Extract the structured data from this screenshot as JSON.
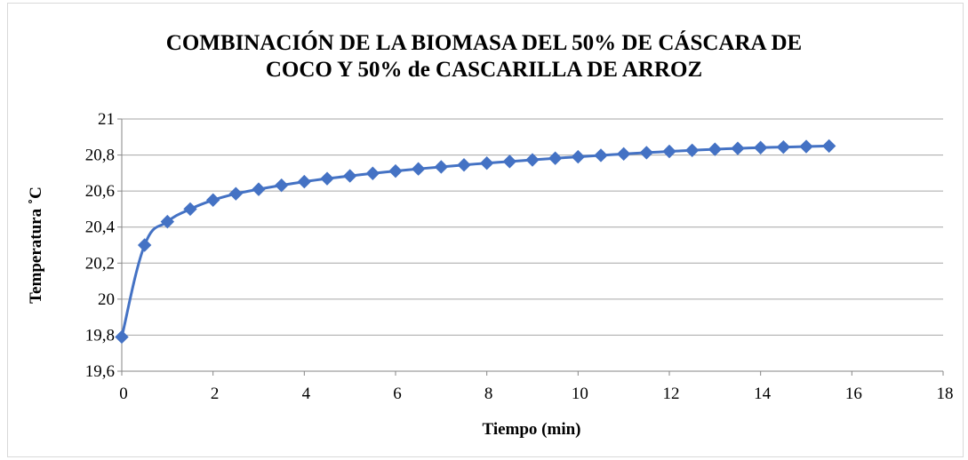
{
  "chart_data": {
    "type": "line",
    "title_lines": [
      "COMBINACIÓN  DE LA BIOMASA DEL 50% DE CÁSCARA DE",
      "COCO Y 50% de CASCARILLA DE ARROZ"
    ],
    "xlabel": "Tiempo (min)",
    "ylabel": "Temperatura ˚C",
    "xlim": [
      0,
      18
    ],
    "ylim": [
      19.6,
      21
    ],
    "x_ticks": [
      "0",
      "2",
      "4",
      "6",
      "8",
      "10",
      "12",
      "14",
      "16",
      "18"
    ],
    "y_ticks": [
      "19,6",
      "19,8",
      "20",
      "20,2",
      "20,4",
      "20,6",
      "20,8",
      "21"
    ],
    "grid": "horizontal",
    "legend": "none",
    "series": [
      {
        "color": "#4472c4",
        "marker": "diamond",
        "smooth": true,
        "x": [
          0,
          0.5,
          1,
          1.5,
          2,
          2.5,
          3,
          3.5,
          4,
          4.5,
          5,
          5.5,
          6,
          6.5,
          7,
          7.5,
          8,
          8.5,
          9,
          9.5,
          10,
          10.5,
          11,
          11.5,
          12,
          12.5,
          13,
          13.5,
          14,
          14.5,
          15,
          15.5
        ],
        "y": [
          19.79,
          20.3,
          20.43,
          20.5,
          20.55,
          20.585,
          20.61,
          20.632,
          20.652,
          20.669,
          20.684,
          20.698,
          20.711,
          20.723,
          20.734,
          20.745,
          20.755,
          20.764,
          20.773,
          20.782,
          20.79,
          20.798,
          20.806,
          20.813,
          20.82,
          20.826,
          20.832,
          20.837,
          20.841,
          20.844,
          20.847,
          20.85
        ]
      }
    ]
  }
}
